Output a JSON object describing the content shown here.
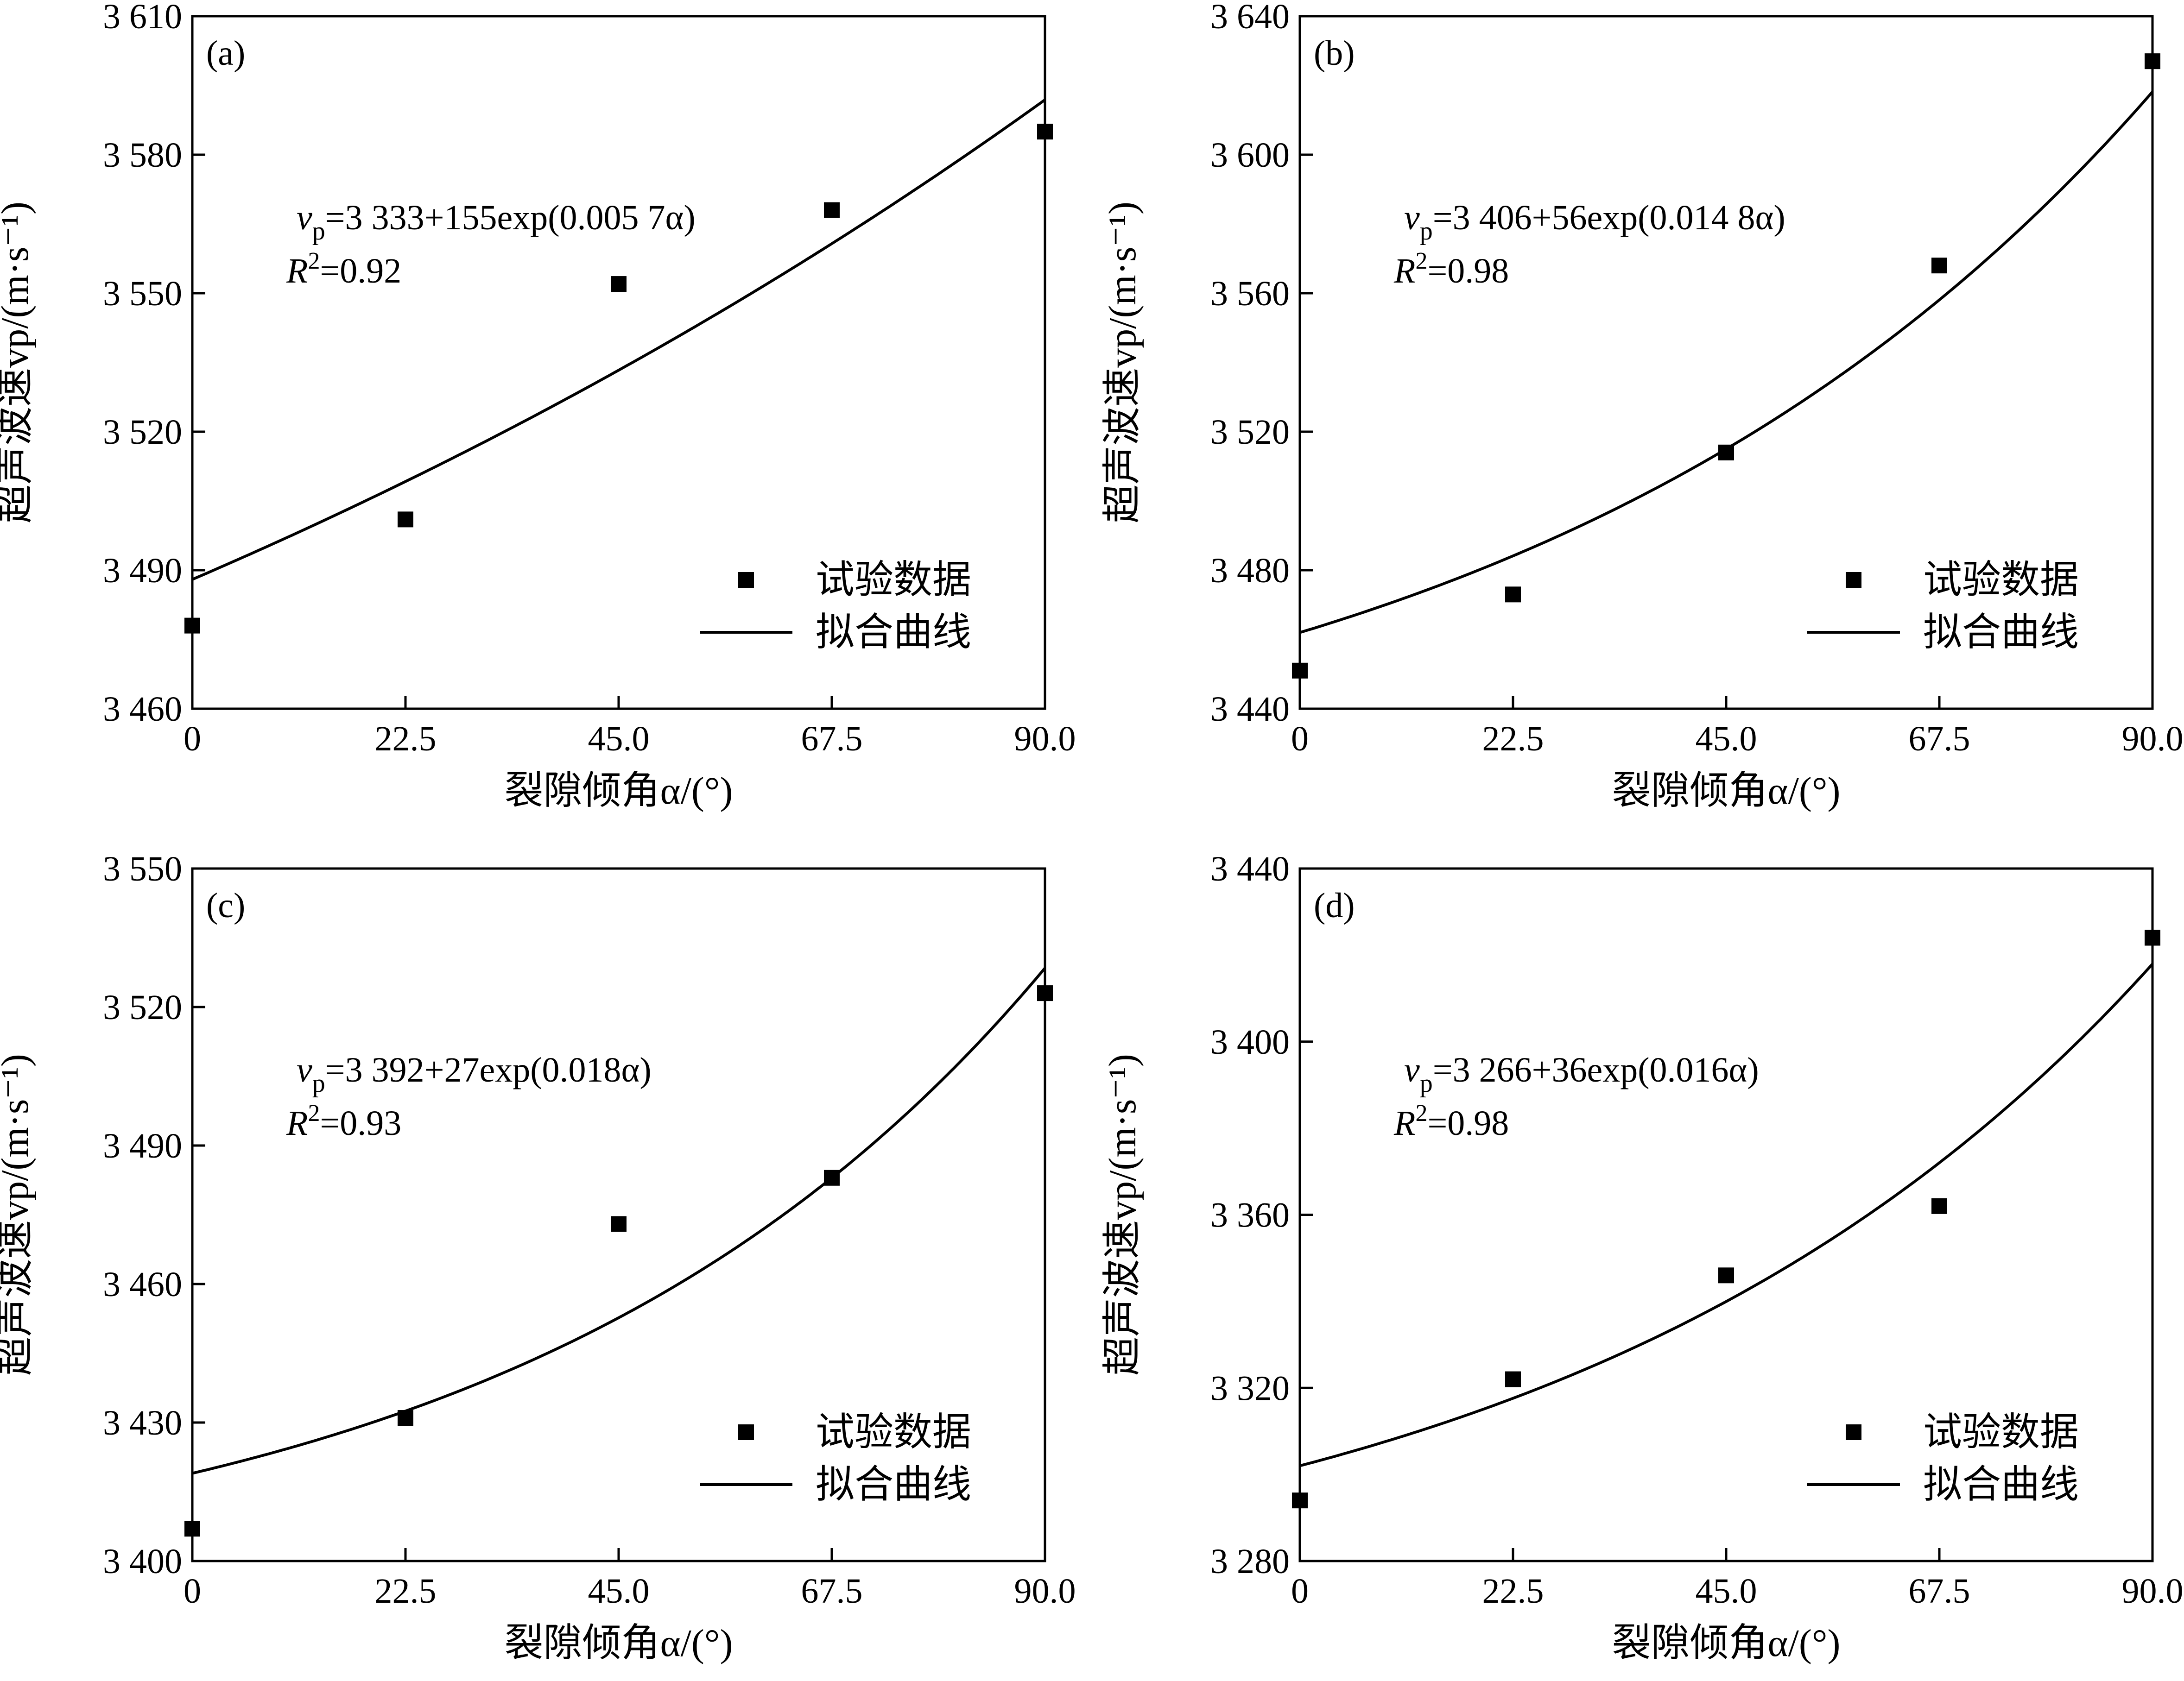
{
  "figure": {
    "legend": {
      "data": "试验数据",
      "fit": "拟合曲线"
    }
  },
  "colors": {
    "ink": "#000000",
    "background": "#ffffff"
  },
  "chart_data": [
    {
      "panel": "(a)",
      "type": "scatter",
      "xlabel": "裂隙倾角α/(°)",
      "ylabel": "超声波速vp/(m·s⁻¹)",
      "xlim": [
        0,
        90
      ],
      "ylim": [
        3460,
        3610
      ],
      "xticks": [
        0,
        22.5,
        45,
        67.5,
        90
      ],
      "xtick_labels": [
        "0",
        "22.5",
        "45.0",
        "67.5",
        "90.0"
      ],
      "yticks": [
        3460,
        3490,
        3520,
        3550,
        3580,
        3610
      ],
      "ytick_labels": [
        "3 460",
        "3 490",
        "3 520",
        "3 550",
        "3 580",
        "3 610"
      ],
      "series": [
        {
          "name": "试验数据",
          "kind": "scatter",
          "x": [
            0,
            22.5,
            45,
            67.5,
            90
          ],
          "y": [
            3478,
            3501,
            3552,
            3568,
            3585
          ]
        },
        {
          "name": "拟合曲线",
          "kind": "line",
          "model": "exp",
          "a": 3333,
          "b": 155,
          "c": 0.0057
        }
      ],
      "equation": {
        "lhs": "v",
        "lhs_sub": "p",
        "rhs": "=3 333+155exp(0.005 7α)",
        "r2_label": "R",
        "r2_sup": "2",
        "r2_value": "=0.92"
      }
    },
    {
      "panel": "(b)",
      "type": "scatter",
      "xlabel": "裂隙倾角α/(°)",
      "ylabel": "超声波速vp/(m·s⁻¹)",
      "xlim": [
        0,
        90
      ],
      "ylim": [
        3440,
        3640
      ],
      "xticks": [
        0,
        22.5,
        45,
        67.5,
        90
      ],
      "xtick_labels": [
        "0",
        "22.5",
        "45.0",
        "67.5",
        "90.0"
      ],
      "yticks": [
        3440,
        3480,
        3520,
        3560,
        3600,
        3640
      ],
      "ytick_labels": [
        "3 440",
        "3 480",
        "3 520",
        "3 560",
        "3 600",
        "3 640"
      ],
      "series": [
        {
          "name": "试验数据",
          "kind": "scatter",
          "x": [
            0,
            22.5,
            45,
            67.5,
            90
          ],
          "y": [
            3451,
            3473,
            3514,
            3568,
            3627
          ]
        },
        {
          "name": "拟合曲线",
          "kind": "line",
          "model": "exp",
          "a": 3406,
          "b": 56,
          "c": 0.0148
        }
      ],
      "equation": {
        "lhs": "v",
        "lhs_sub": "p",
        "rhs": "=3 406+56exp(0.014 8α)",
        "r2_label": "R",
        "r2_sup": "2",
        "r2_value": "=0.98"
      }
    },
    {
      "panel": "(c)",
      "type": "scatter",
      "xlabel": "裂隙倾角α/(°)",
      "ylabel": "超声波速vp/(m·s⁻¹)",
      "xlim": [
        0,
        90
      ],
      "ylim": [
        3400,
        3550
      ],
      "xticks": [
        0,
        22.5,
        45,
        67.5,
        90
      ],
      "xtick_labels": [
        "0",
        "22.5",
        "45.0",
        "67.5",
        "90.0"
      ],
      "yticks": [
        3400,
        3430,
        3460,
        3490,
        3520,
        3550
      ],
      "ytick_labels": [
        "3 400",
        "3 430",
        "3 460",
        "3 490",
        "3 520",
        "3 550"
      ],
      "series": [
        {
          "name": "试验数据",
          "kind": "scatter",
          "x": [
            0,
            22.5,
            45,
            67.5,
            90
          ],
          "y": [
            3407,
            3431,
            3473,
            3483,
            3523
          ]
        },
        {
          "name": "拟合曲线",
          "kind": "line",
          "model": "exp",
          "a": 3392,
          "b": 27,
          "c": 0.018
        }
      ],
      "equation": {
        "lhs": "v",
        "lhs_sub": "p",
        "rhs": "=3 392+27exp(0.018α)",
        "r2_label": "R",
        "r2_sup": "2",
        "r2_value": "=0.93"
      }
    },
    {
      "panel": "(d)",
      "type": "scatter",
      "xlabel": "裂隙倾角α/(°)",
      "ylabel": "超声波速vp/(m·s⁻¹)",
      "xlim": [
        0,
        90
      ],
      "ylim": [
        3280,
        3440
      ],
      "xticks": [
        0,
        22.5,
        45,
        67.5,
        90
      ],
      "xtick_labels": [
        "0",
        "22.5",
        "45.0",
        "67.5",
        "90.0"
      ],
      "yticks": [
        3280,
        3320,
        3360,
        3400,
        3440
      ],
      "ytick_labels": [
        "3 280",
        "3 320",
        "3 360",
        "3 400",
        "3 440"
      ],
      "series": [
        {
          "name": "试验数据",
          "kind": "scatter",
          "x": [
            0,
            22.5,
            45,
            67.5,
            90
          ],
          "y": [
            3294,
            3322,
            3346,
            3362,
            3424
          ]
        },
        {
          "name": "拟合曲线",
          "kind": "line",
          "model": "exp",
          "a": 3266,
          "b": 36,
          "c": 0.016
        }
      ],
      "equation": {
        "lhs": "v",
        "lhs_sub": "p",
        "rhs": "=3 266+36exp(0.016α)",
        "r2_label": "R",
        "r2_sup": "2",
        "r2_value": "=0.98"
      }
    }
  ]
}
